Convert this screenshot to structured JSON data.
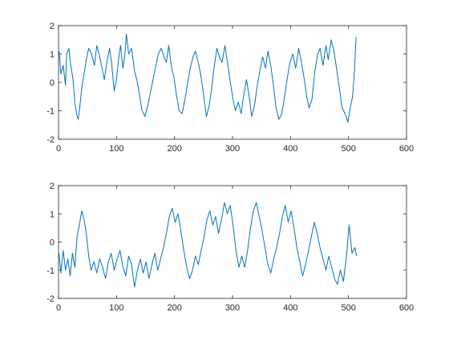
{
  "chart_data": [
    {
      "type": "line",
      "title": "",
      "xlabel": "",
      "ylabel": "",
      "xlim": [
        0,
        600
      ],
      "ylim": [
        -2,
        2
      ],
      "xticks": [
        0,
        100,
        200,
        300,
        400,
        500,
        600
      ],
      "yticks": [
        -2,
        -1,
        0,
        1,
        2
      ],
      "xtick_labels": [
        "0",
        "100",
        "200",
        "300",
        "400",
        "500",
        "600"
      ],
      "ytick_labels": [
        "-2",
        "-1",
        "0",
        "1",
        "2"
      ],
      "grid": false,
      "color": "#0072BD",
      "series": [
        {
          "x": [
            1,
            4,
            8,
            12,
            14,
            18,
            21,
            25,
            28,
            31,
            34,
            37,
            40,
            44,
            48,
            52,
            57,
            62,
            66,
            71,
            75,
            79,
            84,
            88,
            92,
            96,
            100,
            104,
            107,
            111,
            114,
            117,
            121,
            126,
            131,
            136,
            140,
            144,
            149,
            154,
            159,
            164,
            168,
            172,
            177,
            182,
            186,
            190,
            195,
            199,
            203,
            208,
            213,
            218,
            222,
            227,
            232,
            236,
            241,
            245,
            250,
            255,
            260,
            264,
            268,
            273,
            277,
            282,
            287,
            292,
            297,
            301,
            305,
            310,
            315,
            319,
            324,
            328,
            333,
            338,
            342,
            347,
            352,
            357,
            361,
            366,
            371,
            375,
            380,
            385,
            389,
            394,
            399,
            404,
            409,
            414,
            418,
            423,
            428,
            432,
            437,
            442,
            447,
            451,
            456,
            461,
            465,
            470,
            475,
            480,
            485,
            489,
            494,
            499,
            503,
            507,
            510,
            513
          ],
          "y": [
            1.1,
            0.3,
            0.6,
            -0.1,
            1.0,
            1.2,
            0.6,
            0.1,
            -0.7,
            -1.1,
            -1.3,
            -0.8,
            -0.2,
            0.3,
            0.8,
            1.2,
            1.0,
            0.6,
            1.3,
            0.9,
            0.5,
            0.1,
            0.8,
            1.2,
            0.6,
            -0.3,
            0.1,
            0.9,
            1.3,
            0.5,
            0.9,
            1.7,
            1.0,
            1.2,
            0.4,
            0.0,
            -0.5,
            -1.0,
            -1.2,
            -0.8,
            -0.3,
            0.2,
            0.6,
            1.0,
            1.2,
            0.9,
            0.7,
            1.3,
            0.5,
            0.2,
            -0.4,
            -1.0,
            -1.1,
            -0.6,
            -0.1,
            0.5,
            0.9,
            1.1,
            0.7,
            0.3,
            -0.4,
            -1.2,
            -0.8,
            -0.2,
            0.5,
            1.2,
            0.9,
            0.7,
            1.3,
            0.6,
            -0.1,
            -0.6,
            -1.0,
            -0.7,
            -1.1,
            -0.5,
            0.1,
            -0.4,
            -1.2,
            -0.8,
            -0.2,
            0.4,
            0.9,
            0.5,
            1.1,
            0.6,
            -0.2,
            -0.9,
            -1.3,
            -1.1,
            -0.6,
            0.1,
            0.7,
            1.0,
            0.5,
            1.2,
            0.8,
            0.2,
            -0.5,
            -0.9,
            -0.6,
            0.4,
            1.0,
            1.2,
            0.6,
            1.3,
            0.8,
            1.5,
            1.1,
            0.4,
            -0.3,
            -0.9,
            -1.1,
            -1.4,
            -0.9,
            -0.5,
            0.3,
            1.6
          ]
        }
      ]
    },
    {
      "type": "line",
      "title": "",
      "xlabel": "",
      "ylabel": "",
      "xlim": [
        0,
        600
      ],
      "ylim": [
        -2,
        2
      ],
      "xticks": [
        0,
        100,
        200,
        300,
        400,
        500,
        600
      ],
      "yticks": [
        -2,
        -1,
        0,
        1,
        2
      ],
      "xtick_labels": [
        "0",
        "100",
        "200",
        "300",
        "400",
        "500",
        "600"
      ],
      "ytick_labels": [
        "-2",
        "-1",
        "0",
        "1",
        "2"
      ],
      "grid": false,
      "color": "#0072BD",
      "series": [
        {
          "x": [
            1,
            4,
            8,
            12,
            16,
            20,
            24,
            28,
            32,
            36,
            40,
            44,
            48,
            52,
            56,
            61,
            66,
            71,
            76,
            81,
            86,
            91,
            96,
            101,
            106,
            111,
            116,
            121,
            126,
            131,
            136,
            141,
            146,
            151,
            156,
            161,
            166,
            171,
            176,
            181,
            186,
            191,
            196,
            201,
            206,
            211,
            216,
            221,
            226,
            231,
            236,
            241,
            246,
            251,
            256,
            261,
            266,
            271,
            276,
            281,
            286,
            291,
            296,
            301,
            306,
            311,
            316,
            321,
            326,
            331,
            336,
            341,
            346,
            351,
            356,
            361,
            366,
            371,
            376,
            381,
            386,
            391,
            396,
            401,
            406,
            411,
            416,
            421,
            426,
            431,
            436,
            441,
            446,
            451,
            456,
            461,
            466,
            471,
            476,
            481,
            486,
            491,
            496,
            501,
            506,
            511,
            514
          ],
          "y": [
            -0.4,
            -1.1,
            -0.3,
            -1.0,
            -0.6,
            -1.2,
            -0.4,
            -0.9,
            0.2,
            0.6,
            1.1,
            0.8,
            0.3,
            -0.5,
            -1.0,
            -0.7,
            -1.1,
            -0.6,
            -0.9,
            -1.3,
            -0.7,
            -0.4,
            -1.0,
            -0.6,
            -0.3,
            -0.9,
            -1.2,
            -0.5,
            -0.8,
            -1.6,
            -1.0,
            -0.6,
            -1.1,
            -0.7,
            -1.3,
            -0.8,
            -0.4,
            -1.0,
            -0.6,
            -0.2,
            0.3,
            0.9,
            1.2,
            0.7,
            1.0,
            0.4,
            -0.3,
            -0.9,
            -1.3,
            -1.0,
            -0.5,
            -0.8,
            -0.3,
            0.2,
            0.8,
            1.1,
            0.6,
            0.9,
            0.3,
            0.8,
            1.4,
            1.0,
            1.3,
            0.6,
            -0.3,
            -0.9,
            -0.5,
            -0.9,
            -0.3,
            0.5,
            1.1,
            1.4,
            0.9,
            0.4,
            -0.2,
            -0.8,
            -1.1,
            -0.6,
            -0.2,
            0.3,
            0.9,
            1.3,
            0.7,
            1.1,
            0.5,
            -0.2,
            -0.7,
            -1.2,
            -0.8,
            -0.3,
            0.2,
            0.7,
            0.3,
            -0.2,
            -0.6,
            -1.0,
            -0.5,
            -0.9,
            -1.3,
            -1.5,
            -1.0,
            -1.4,
            -0.6,
            0.6,
            -0.4,
            -0.2,
            -0.5
          ]
        }
      ]
    }
  ]
}
